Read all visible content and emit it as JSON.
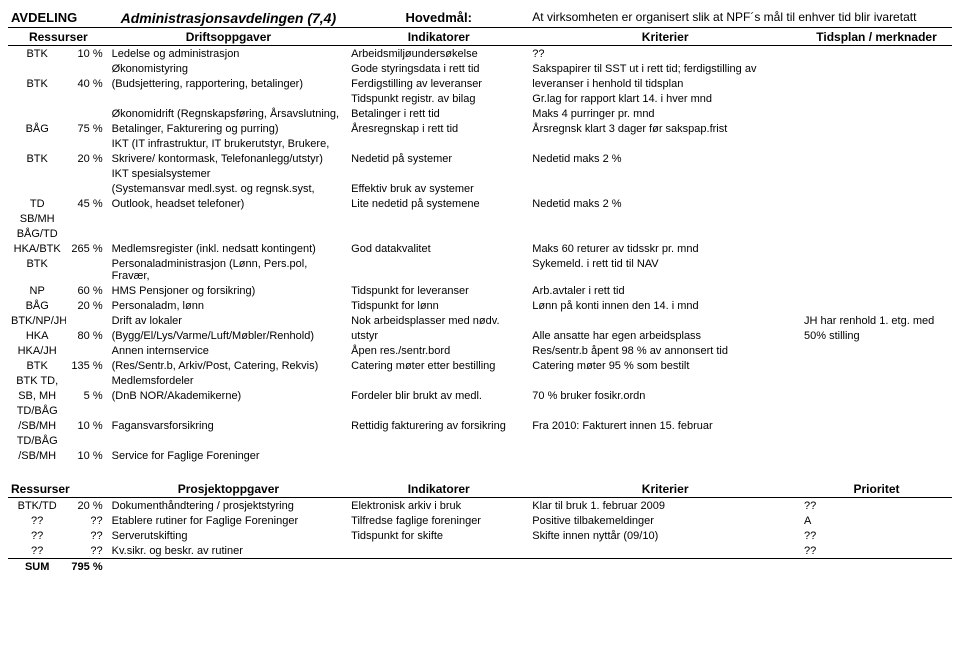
{
  "header": {
    "avdeling_lbl": "AVDELING",
    "avdeling_val": "Administrasjonsavdelingen (7,4)",
    "hovedmal_lbl": "Hovedmål:",
    "hovedmal_txt": "At virksomheten er organisert slik at NPF´s mål til enhver tid blir ivaretatt"
  },
  "sub1": {
    "ressurser": "Ressurser",
    "drift": "Driftsoppgaver",
    "indikatorer": "Indikatorer",
    "kriterier": "Kriterier",
    "tidsplan": "Tidsplan / merknader"
  },
  "rows1": [
    {
      "r1": "BTK",
      "r2": "10 %",
      "d": "Ledelse og administrasjon",
      "i": "Arbeidsmiljøundersøkelse",
      "k": "??",
      "t": ""
    },
    {
      "r1": "",
      "r2": "",
      "d": "Økonomistyring",
      "i": "Gode styringsdata i rett tid",
      "k": "Sakspapirer til SST ut i rett tid; ferdigstilling av",
      "t": ""
    },
    {
      "r1": "BTK",
      "r2": "40 %",
      "d": "(Budsjettering, rapportering, betalinger)",
      "i": "Ferdigstilling av leveranser",
      "k": "leveranser i henhold til tidsplan",
      "t": ""
    },
    {
      "r1": "",
      "r2": "",
      "d": "",
      "i": "Tidspunkt registr. av bilag",
      "k": "Gr.lag for rapport klart 14. i hver mnd",
      "t": ""
    },
    {
      "r1": "",
      "r2": "",
      "d": "Økonomidrift (Regnskapsføring, Årsavslutning,",
      "i": "Betalinger i rett tid",
      "k": "Maks 4 purringer pr. mnd",
      "t": ""
    },
    {
      "r1": "BÅG",
      "r2": "75 %",
      "d": "Betalinger, Fakturering og purring)",
      "i": "Åresregnskap i rett tid",
      "k": "Årsregnsk klart 3 dager før sakspap.frist",
      "t": ""
    },
    {
      "r1": "",
      "r2": "",
      "d": "IKT (IT infrastruktur, IT brukerutstyr, Brukere,",
      "i": "",
      "k": "",
      "t": ""
    },
    {
      "r1": "BTK",
      "r2": "20 %",
      "d": "Skrivere/ kontormask, Telefonanlegg/utstyr)",
      "i": "Nedetid på systemer",
      "k": "Nedetid maks 2 %",
      "t": ""
    },
    {
      "r1": "",
      "r2": "",
      "d": "IKT spesialsystemer",
      "i": "",
      "k": "",
      "t": ""
    },
    {
      "r1": "",
      "r2": "",
      "d": "(Systemansvar medl.syst. og regnsk.syst,",
      "i": "Effektiv bruk av systemer",
      "k": "",
      "t": ""
    },
    {
      "r1": "TD",
      "r2": "45 %",
      "d": "Outlook, headset telefoner)",
      "i": "Lite nedetid på systemene",
      "k": "Nedetid maks 2 %",
      "t": ""
    },
    {
      "r1": "SB/MH",
      "r2": "",
      "d": "",
      "i": "",
      "k": "",
      "t": ""
    },
    {
      "r1": "BÅG/TD",
      "r2": "",
      "d": "",
      "i": "",
      "k": "",
      "t": ""
    },
    {
      "r1": "HKA/BTK",
      "r2": "265 %",
      "d": "Medlemsregister (inkl. nedsatt kontingent)",
      "i": "God datakvalitet",
      "k": "Maks 60 returer av tidsskr pr. mnd",
      "t": ""
    },
    {
      "r1": "BTK",
      "r2": "",
      "d": "Personaladministrasjon (Lønn, Pers.pol, Fravær,",
      "i": "",
      "k": "Sykemeld. i rett tid til NAV",
      "t": ""
    },
    {
      "r1": "NP",
      "r2": "60 %",
      "d": "HMS Pensjoner og forsikring)",
      "i": "Tidspunkt for leveranser",
      "k": "Arb.avtaler i rett tid",
      "t": ""
    },
    {
      "r1": "BÅG",
      "r2": "20 %",
      "d": "Personaladm, lønn",
      "i": "Tidspunkt for lønn",
      "k": "Lønn på konti innen den 14. i mnd",
      "t": ""
    },
    {
      "r1": "BTK/NP/JH/",
      "r2": "",
      "d": "Drift av lokaler",
      "i": "Nok arbeidsplasser med nødv.",
      "k": "",
      "t": "JH har renhold 1. etg. med"
    },
    {
      "r1": "HKA",
      "r2": "80 %",
      "d": "(Bygg/El/Lys/Varme/Luft/Møbler/Renhold)",
      "i": "utstyr",
      "k": "Alle ansatte har egen arbeidsplass",
      "t": "50% stilling"
    },
    {
      "r1": "HKA/JH",
      "r2": "",
      "d": "Annen internservice",
      "i": "Åpen res./sentr.bord",
      "k": "Res/sentr.b åpent 98 % av annonsert tid",
      "t": ""
    },
    {
      "r1": "BTK",
      "r2": "135 %",
      "d": "(Res/Sentr.b, Arkiv/Post, Catering, Rekvis)",
      "i": "Catering møter etter bestilling",
      "k": "Catering møter 95 % som bestilt",
      "t": ""
    },
    {
      "r1": "BTK TD,",
      "r2": "",
      "d": "Medlemsfordeler",
      "i": "",
      "k": "",
      "t": ""
    },
    {
      "r1": "SB, MH",
      "r2": "5 %",
      "d": "(DnB NOR/Akademikerne)",
      "i": "Fordeler blir brukt av medl.",
      "k": "70 % bruker fosikr.ordn",
      "t": ""
    },
    {
      "r1": "TD/BÅG",
      "r2": "",
      "d": "",
      "i": "",
      "k": "",
      "t": ""
    },
    {
      "r1": "/SB/MH",
      "r2": "10 %",
      "d": "Fagansvarsforsikring",
      "i": "Rettidig fakturering av forsikring",
      "k": "Fra 2010: Fakturert innen 15. februar",
      "t": ""
    },
    {
      "r1": "TD/BÅG",
      "r2": "",
      "d": "",
      "i": "",
      "k": "",
      "t": ""
    },
    {
      "r1": "/SB/MH",
      "r2": "10 %",
      "d": "Service for Faglige Foreninger",
      "i": "",
      "k": "",
      "t": ""
    }
  ],
  "sub2": {
    "ressurser": "Ressurser",
    "prosjekt": "Prosjektoppgaver",
    "indikatorer": "Indikatorer",
    "kriterier": "Kriterier",
    "prioritet": "Prioritet"
  },
  "rows2": [
    {
      "r1": "BTK/TD",
      "r2": "20 %",
      "d": "Dokumenthåndtering / prosjektstyring",
      "i": "Elektronisk arkiv i bruk",
      "k": "Klar til bruk 1. februar 2009",
      "t": "??"
    },
    {
      "r1": "??",
      "r2": "??",
      "d": "Etablere rutiner for Faglige Foreninger",
      "i": "Tilfredse faglige foreninger",
      "k": "Positive tilbakemeldinger",
      "t": "A"
    },
    {
      "r1": "??",
      "r2": "??",
      "d": "Serverutskifting",
      "i": "Tidspunkt for skifte",
      "k": "Skifte innen nyttår (09/10)",
      "t": "??"
    },
    {
      "r1": "??",
      "r2": "??",
      "d": "Kv.sikr. og beskr. av rutiner",
      "i": "",
      "k": "",
      "t": "??"
    }
  ],
  "sum": {
    "label": "SUM",
    "value": "795 %"
  }
}
